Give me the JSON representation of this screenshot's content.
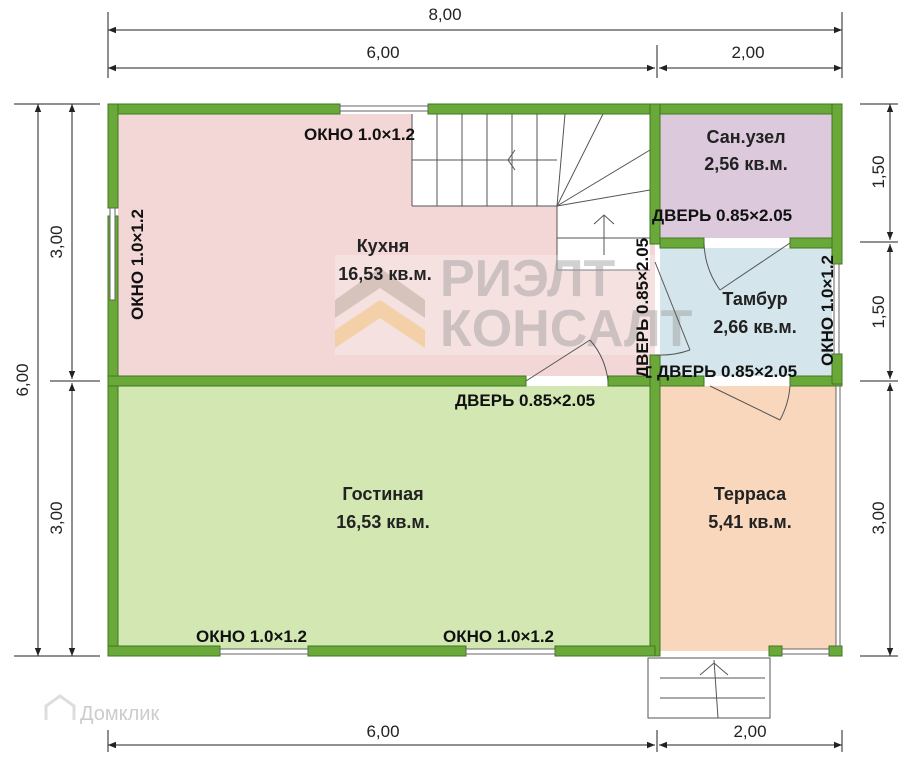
{
  "dimensions": {
    "top_total": "8,00",
    "top_left": "6,00",
    "top_right": "2,00",
    "left_total": "6,00",
    "left_upper": "3,00",
    "left_lower": "3,00",
    "right_upper": "1,50",
    "right_middle": "1,50",
    "right_lower": "3,00",
    "bottom_left": "6,00",
    "bottom_right": "2,00"
  },
  "rooms": {
    "kitchen": {
      "name": "Кухня",
      "area": "16,53 кв.м.",
      "color": "#f3d7d7"
    },
    "living": {
      "name": "Гостиная",
      "area": "16,53 кв.м.",
      "color": "#d3e7b3"
    },
    "bathroom": {
      "name": "Сан.узел",
      "area": "2,56 кв.м.",
      "color": "#dcc9dc"
    },
    "vestibule": {
      "name": "Тамбур",
      "area": "2,66 кв.м.",
      "color": "#d5e5ec"
    },
    "terrace": {
      "name": "Терраса",
      "area": "5,41 кв.м.",
      "color": "#f8d7bd"
    }
  },
  "labels": {
    "kitchen_top_window": "ОКНО 1.0×1.2",
    "kitchen_left_window": "ОКНО 1.0×1.2",
    "kitchen_door": "ДВЕРЬ 0.85×2.05",
    "kitchen_vestibule_door": "ДВЕРЬ 0.85×2.05",
    "bathroom_door": "ДВЕРЬ 0.85×2.05",
    "vestibule_window": "ОКНО 1.0×1.2",
    "vestibule_terrace_door": "ДВЕРЬ 0.85×2.05",
    "living_window_1": "ОКНО 1.0×1.2",
    "living_window_2": "ОКНО 1.0×1.2"
  },
  "watermarks": {
    "agency_line1": "РИЭЛТ",
    "agency_line2": "КОНСАЛТ",
    "site": "Домклик"
  },
  "colors": {
    "wall": "#6aa83a"
  }
}
